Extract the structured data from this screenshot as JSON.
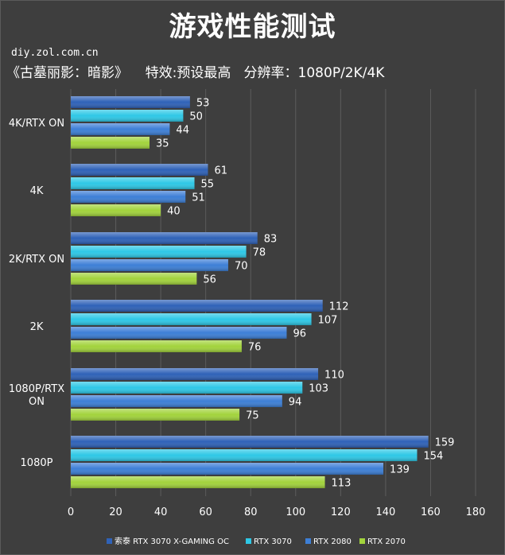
{
  "header": {
    "title": "游戏性能测试",
    "watermark": "diy.zol.com.cn",
    "subtitle": "《古墓丽影：暗影》    特效:预设最高   分辨率：1080P/2K/4K"
  },
  "colors": {
    "background": "#3e3e3e",
    "grid": "#5c5c5c",
    "series": [
      "#2f62b8",
      "#2ec8e6",
      "#3d7fd6",
      "#a2d33c"
    ]
  },
  "chart_data": {
    "type": "bar",
    "orientation": "horizontal",
    "categories": [
      "4K/RTX ON",
      "4K",
      "2K/RTX ON",
      "2K",
      "1080P/RTX ON",
      "1080P"
    ],
    "series": [
      {
        "name": "索泰 RTX 3070 X-GAMING OC",
        "values": [
          53,
          61,
          83,
          112,
          110,
          159
        ]
      },
      {
        "name": "RTX 3070",
        "values": [
          50,
          55,
          78,
          107,
          103,
          154
        ]
      },
      {
        "name": "RTX 2080",
        "values": [
          44,
          51,
          70,
          96,
          94,
          139
        ]
      },
      {
        "name": "RTX 2070",
        "values": [
          35,
          40,
          56,
          76,
          75,
          113
        ]
      }
    ],
    "xlim": [
      0,
      180
    ],
    "xticks": [
      0,
      20,
      40,
      60,
      80,
      100,
      120,
      140,
      160,
      180
    ],
    "grid": true,
    "legend_position": "bottom"
  }
}
